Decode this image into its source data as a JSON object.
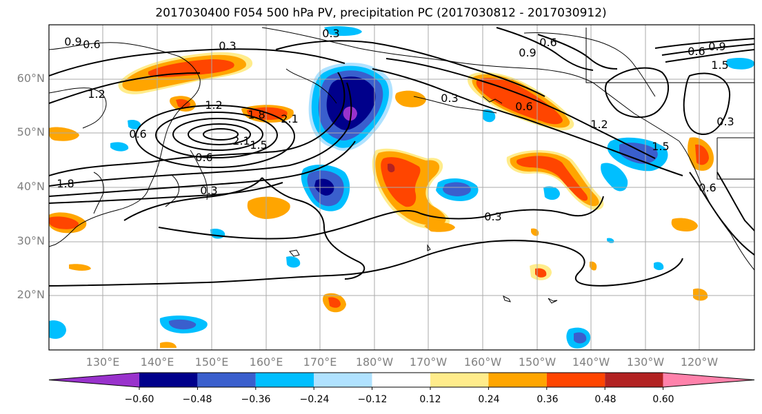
{
  "title": "2017030400 F054 500 hPa PV, precipitation PC (2017030812 - 2017030912)",
  "lat_labels": [
    "60°N",
    "50°N",
    "40°N",
    "30°N",
    "20°N"
  ],
  "lon_labels": [
    "130°E",
    "140°E",
    "150°E",
    "160°E",
    "170°E",
    "180°W",
    "170°W",
    "160°W",
    "150°W",
    "140°W",
    "130°W",
    "120°W"
  ],
  "contour_labels": [
    "0.9",
    "0.6",
    "0.3",
    "0.3",
    "1.2",
    "0.6",
    "0.9",
    "0.3",
    "0.6",
    "1.2",
    "1.8",
    "2.1",
    "2.1",
    "1.5",
    "0.6",
    "0.3",
    "1.8",
    "0.3",
    "0.6",
    "1.2",
    "1.5",
    "0.6",
    "0.3",
    "0.6",
    "0.9",
    "1.5"
  ],
  "colorbar": {
    "ticks": [
      "−0.60",
      "−0.48",
      "−0.36",
      "−0.24",
      "−0.12",
      "0.12",
      "0.24",
      "0.36",
      "0.48",
      "0.60"
    ],
    "colors": [
      "#9932cc",
      "#00008b",
      "#3a5fcd",
      "#00bfff",
      "#b0e2ff",
      "#ffffff",
      "#ffec8b",
      "#ffa500",
      "#ff4500",
      "#b22222",
      "#ff82ab"
    ]
  },
  "colors": {
    "deep_negative": "#00008b",
    "mid_negative": "#3a5fcd",
    "light_negative": "#00bfff",
    "pale_negative": "#b0e2ff",
    "pale_positive": "#ffec8b",
    "mid_positive": "#ffa500",
    "strong_positive": "#ff4500",
    "very_strong_positive": "#b22222"
  }
}
